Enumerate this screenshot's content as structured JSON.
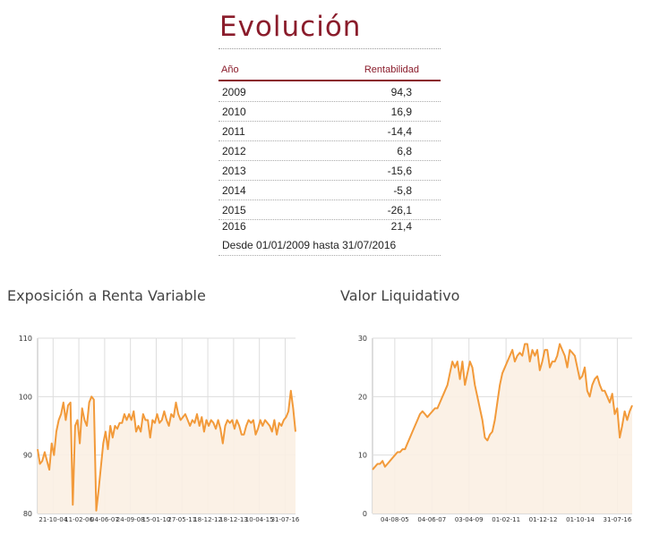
{
  "title": "Evolución",
  "table": {
    "header": {
      "year": "Año",
      "value": "Rentabilidad"
    },
    "rows": [
      {
        "year": "2009",
        "value": "94,3"
      },
      {
        "year": "2010",
        "value": "16,9"
      },
      {
        "year": "2011",
        "value": "-14,4"
      },
      {
        "year": "2012",
        "value": "6,8"
      },
      {
        "year": "2013",
        "value": "-15,6"
      },
      {
        "year": "2014",
        "value": "-5,8"
      },
      {
        "year": "2015",
        "value": "-26,1"
      },
      {
        "year": "2016",
        "value": "21,4"
      }
    ],
    "footnote": "Desde 01/01/2009 hasta 31/07/2016"
  },
  "colors": {
    "accent": "#8a1c2b",
    "line": "#f29a3a",
    "fill": "#fbefe3",
    "grid": "#dddddd"
  },
  "chart_data": [
    {
      "type": "area",
      "title": "Exposición a Renta Variable",
      "ylim": [
        80,
        110
      ],
      "yticks": [
        "110",
        "100",
        "90",
        "80"
      ],
      "xticks": [
        "21-10-04",
        "11-02-06",
        "04-06-07",
        "24-09-08",
        "15-01-10",
        "27-05-11",
        "18-12-12",
        "18-12-13",
        "10-04-15",
        "31-07-16"
      ],
      "grid": true,
      "values": [
        91,
        88.5,
        89,
        90.5,
        89,
        87.5,
        92,
        90,
        94,
        96,
        97,
        99,
        96,
        98.5,
        99,
        81.5,
        95,
        96,
        92,
        98,
        96,
        95,
        99,
        100,
        99.5,
        80.5,
        84,
        88,
        92,
        94,
        91,
        95,
        93,
        95,
        94.5,
        95.5,
        95.5,
        97,
        96,
        97,
        96,
        97.5,
        94,
        95,
        94,
        97,
        96,
        96,
        93,
        96,
        95.5,
        97,
        95.5,
        96,
        97.5,
        96,
        95,
        97,
        96.5,
        99,
        97,
        96,
        96.5,
        97,
        96,
        95,
        96,
        95.5,
        97,
        95,
        96.5,
        94,
        96,
        95,
        96,
        95.5,
        94.5,
        96,
        94.5,
        92,
        95,
        96,
        95.5,
        96,
        94.5,
        96,
        95,
        93.5,
        93.5,
        95,
        96,
        95.5,
        96,
        93.5,
        94.5,
        96,
        95,
        96,
        95.5,
        95,
        94,
        96,
        93.5,
        95.5,
        95,
        96,
        96.5,
        97.5,
        101,
        98,
        94
      ]
    },
    {
      "type": "area",
      "title": "Valor Liquidativo",
      "ylim": [
        0,
        30
      ],
      "yticks": [
        "30",
        "20",
        "10",
        "0"
      ],
      "xticks": [
        "04-08-05",
        "04-06-07",
        "03-04-09",
        "01-02-11",
        "01-12-12",
        "01-10-14",
        "31-07-16"
      ],
      "grid": true,
      "values": [
        7.5,
        8,
        8.5,
        8.5,
        9,
        8,
        8.5,
        9,
        9.5,
        10,
        10.5,
        10.5,
        11,
        11,
        12,
        13,
        14,
        15,
        16,
        17,
        17.5,
        17,
        16.5,
        17,
        17.5,
        18,
        18,
        19,
        20,
        21,
        22,
        24,
        26,
        25,
        26,
        23,
        26,
        22,
        24,
        26,
        25,
        22,
        20,
        18,
        16,
        13,
        12.5,
        13.5,
        14,
        16,
        19,
        22,
        24,
        25,
        26,
        27,
        28,
        26,
        27,
        27.5,
        27,
        29,
        29,
        26,
        28,
        27,
        28,
        24.5,
        26,
        28,
        28,
        25,
        26,
        26,
        27,
        29,
        28,
        27,
        25,
        28,
        27.5,
        27,
        25,
        23,
        23.5,
        25,
        21,
        20,
        22,
        23,
        23.5,
        22,
        21,
        21,
        20,
        19,
        20.5,
        17,
        18,
        13,
        15,
        17.5,
        16,
        17.5,
        18.5
      ]
    }
  ]
}
